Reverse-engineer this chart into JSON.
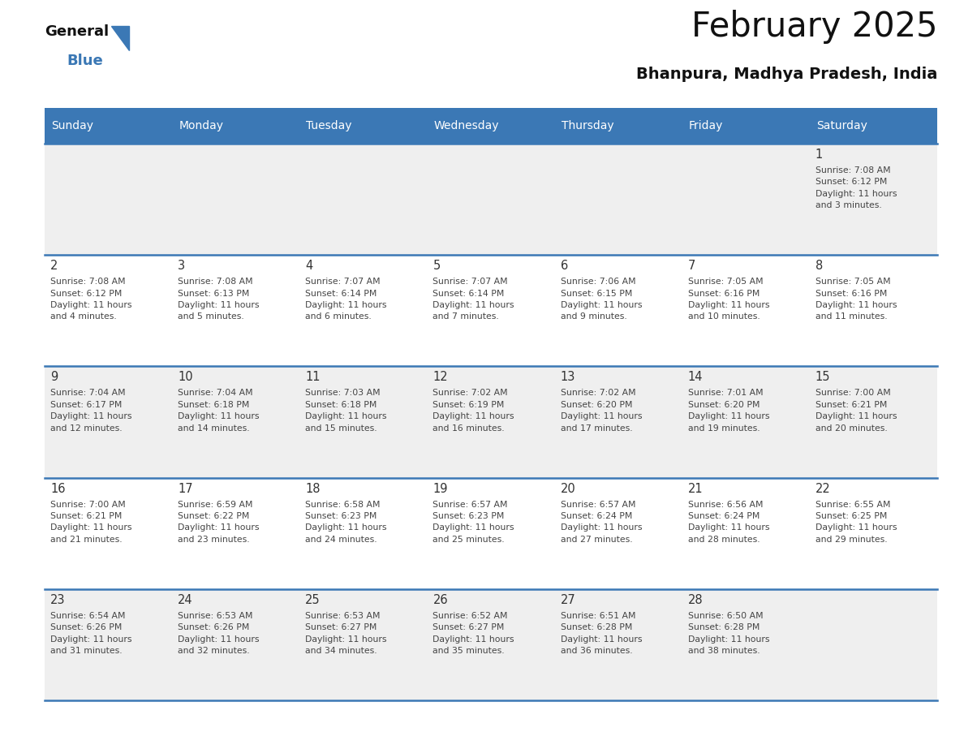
{
  "title": "February 2025",
  "subtitle": "Bhanpura, Madhya Pradesh, India",
  "header_bg_color": "#3b78b5",
  "header_text_color": "#ffffff",
  "days_of_week": [
    "Sunday",
    "Monday",
    "Tuesday",
    "Wednesday",
    "Thursday",
    "Friday",
    "Saturday"
  ],
  "separator_color": "#3b78b5",
  "day_number_color": "#333333",
  "cell_text_color": "#444444",
  "logo_color_general": "#111111",
  "logo_color_blue": "#3b78b5",
  "odd_row_bg": "#efefef",
  "even_row_bg": "#ffffff",
  "weeks": [
    [
      {
        "day": null,
        "info": null
      },
      {
        "day": null,
        "info": null
      },
      {
        "day": null,
        "info": null
      },
      {
        "day": null,
        "info": null
      },
      {
        "day": null,
        "info": null
      },
      {
        "day": null,
        "info": null
      },
      {
        "day": 1,
        "info": "Sunrise: 7:08 AM\nSunset: 6:12 PM\nDaylight: 11 hours\nand 3 minutes."
      }
    ],
    [
      {
        "day": 2,
        "info": "Sunrise: 7:08 AM\nSunset: 6:12 PM\nDaylight: 11 hours\nand 4 minutes."
      },
      {
        "day": 3,
        "info": "Sunrise: 7:08 AM\nSunset: 6:13 PM\nDaylight: 11 hours\nand 5 minutes."
      },
      {
        "day": 4,
        "info": "Sunrise: 7:07 AM\nSunset: 6:14 PM\nDaylight: 11 hours\nand 6 minutes."
      },
      {
        "day": 5,
        "info": "Sunrise: 7:07 AM\nSunset: 6:14 PM\nDaylight: 11 hours\nand 7 minutes."
      },
      {
        "day": 6,
        "info": "Sunrise: 7:06 AM\nSunset: 6:15 PM\nDaylight: 11 hours\nand 9 minutes."
      },
      {
        "day": 7,
        "info": "Sunrise: 7:05 AM\nSunset: 6:16 PM\nDaylight: 11 hours\nand 10 minutes."
      },
      {
        "day": 8,
        "info": "Sunrise: 7:05 AM\nSunset: 6:16 PM\nDaylight: 11 hours\nand 11 minutes."
      }
    ],
    [
      {
        "day": 9,
        "info": "Sunrise: 7:04 AM\nSunset: 6:17 PM\nDaylight: 11 hours\nand 12 minutes."
      },
      {
        "day": 10,
        "info": "Sunrise: 7:04 AM\nSunset: 6:18 PM\nDaylight: 11 hours\nand 14 minutes."
      },
      {
        "day": 11,
        "info": "Sunrise: 7:03 AM\nSunset: 6:18 PM\nDaylight: 11 hours\nand 15 minutes."
      },
      {
        "day": 12,
        "info": "Sunrise: 7:02 AM\nSunset: 6:19 PM\nDaylight: 11 hours\nand 16 minutes."
      },
      {
        "day": 13,
        "info": "Sunrise: 7:02 AM\nSunset: 6:20 PM\nDaylight: 11 hours\nand 17 minutes."
      },
      {
        "day": 14,
        "info": "Sunrise: 7:01 AM\nSunset: 6:20 PM\nDaylight: 11 hours\nand 19 minutes."
      },
      {
        "day": 15,
        "info": "Sunrise: 7:00 AM\nSunset: 6:21 PM\nDaylight: 11 hours\nand 20 minutes."
      }
    ],
    [
      {
        "day": 16,
        "info": "Sunrise: 7:00 AM\nSunset: 6:21 PM\nDaylight: 11 hours\nand 21 minutes."
      },
      {
        "day": 17,
        "info": "Sunrise: 6:59 AM\nSunset: 6:22 PM\nDaylight: 11 hours\nand 23 minutes."
      },
      {
        "day": 18,
        "info": "Sunrise: 6:58 AM\nSunset: 6:23 PM\nDaylight: 11 hours\nand 24 minutes."
      },
      {
        "day": 19,
        "info": "Sunrise: 6:57 AM\nSunset: 6:23 PM\nDaylight: 11 hours\nand 25 minutes."
      },
      {
        "day": 20,
        "info": "Sunrise: 6:57 AM\nSunset: 6:24 PM\nDaylight: 11 hours\nand 27 minutes."
      },
      {
        "day": 21,
        "info": "Sunrise: 6:56 AM\nSunset: 6:24 PM\nDaylight: 11 hours\nand 28 minutes."
      },
      {
        "day": 22,
        "info": "Sunrise: 6:55 AM\nSunset: 6:25 PM\nDaylight: 11 hours\nand 29 minutes."
      }
    ],
    [
      {
        "day": 23,
        "info": "Sunrise: 6:54 AM\nSunset: 6:26 PM\nDaylight: 11 hours\nand 31 minutes."
      },
      {
        "day": 24,
        "info": "Sunrise: 6:53 AM\nSunset: 6:26 PM\nDaylight: 11 hours\nand 32 minutes."
      },
      {
        "day": 25,
        "info": "Sunrise: 6:53 AM\nSunset: 6:27 PM\nDaylight: 11 hours\nand 34 minutes."
      },
      {
        "day": 26,
        "info": "Sunrise: 6:52 AM\nSunset: 6:27 PM\nDaylight: 11 hours\nand 35 minutes."
      },
      {
        "day": 27,
        "info": "Sunrise: 6:51 AM\nSunset: 6:28 PM\nDaylight: 11 hours\nand 36 minutes."
      },
      {
        "day": 28,
        "info": "Sunrise: 6:50 AM\nSunset: 6:28 PM\nDaylight: 11 hours\nand 38 minutes."
      },
      {
        "day": null,
        "info": null
      }
    ]
  ],
  "figsize": [
    11.88,
    9.18
  ],
  "dpi": 100
}
